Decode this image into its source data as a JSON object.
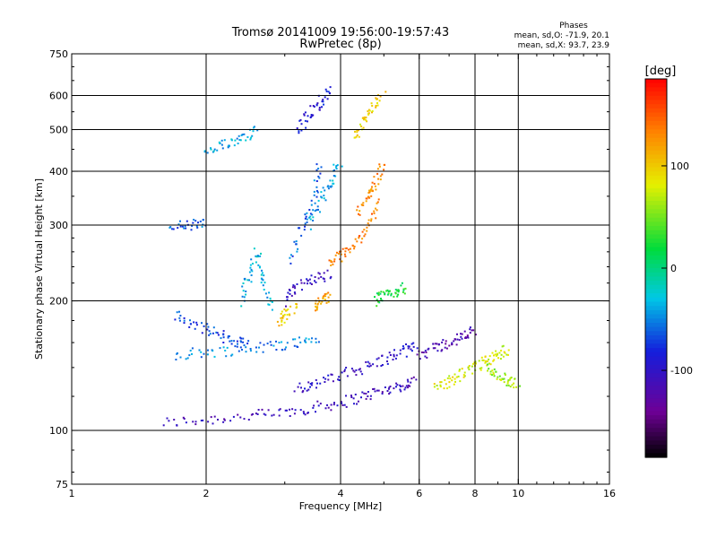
{
  "title_line1": "Tromsø 20141009 19:56:00-19:57:43",
  "title_line2": "RwPretec (8p)",
  "stats": {
    "heading": "Phases",
    "line_o": "mean, sd,O: -71.9, 20.1",
    "line_x": "mean, sd,X:  93.7, 23.9"
  },
  "colorbar": {
    "label": "[deg]",
    "ticks": [
      "100",
      "0",
      "-100"
    ],
    "tick_values": [
      100,
      0,
      -100
    ],
    "range": [
      -185,
      185
    ]
  },
  "chart_data": {
    "type": "scatter",
    "xlabel": "Frequency [MHz]",
    "ylabel": "Stationary phase Virtual Height [km]",
    "xscale": "log2",
    "yscale": "log",
    "xlim": [
      1,
      16
    ],
    "ylim": [
      75,
      750
    ],
    "xticks": [
      1,
      2,
      4,
      6,
      8,
      10,
      16
    ],
    "yticks": [
      75,
      100,
      200,
      300,
      400,
      500,
      600,
      750
    ],
    "grid": true,
    "color_scale": "rainbow (black → purple → blue → cyan → green → yellow → orange → red)",
    "color_value": "phase [deg]",
    "trace_note": "approximate centerlines of the scattered echo traces; phase in degrees",
    "traces": [
      {
        "x": [
          1.6,
          2.0,
          2.5,
          3.0,
          3.5,
          4.0,
          4.5,
          5.0,
          5.5,
          5.9
        ],
        "y": [
          104,
          106,
          108,
          110,
          113,
          116,
          120,
          124,
          127,
          130
        ],
        "phase": -110
      },
      {
        "x": [
          3.2,
          3.5,
          4.0,
          4.5,
          5.0,
          5.5,
          5.9
        ],
        "y": [
          126,
          128,
          134,
          140,
          146,
          152,
          158
        ],
        "phase": -100
      },
      {
        "x": [
          1.7,
          2.0,
          2.4,
          2.8,
          3.2,
          3.6
        ],
        "y": [
          150,
          152,
          154,
          157,
          160,
          164
        ],
        "phase": -50
      },
      {
        "x": [
          1.7,
          1.9,
          2.1,
          2.3,
          2.5
        ],
        "y": [
          185,
          175,
          168,
          162,
          158
        ],
        "phase": -70
      },
      {
        "x": [
          1.65,
          1.85,
          2.0
        ],
        "y": [
          298,
          300,
          302
        ],
        "phase": -60
      },
      {
        "x": [
          2.0,
          2.2,
          2.4,
          2.6
        ],
        "y": [
          440,
          460,
          480,
          500
        ],
        "phase": -40
      },
      {
        "x": [
          2.4,
          2.5,
          2.6,
          2.7,
          2.8
        ],
        "y": [
          200,
          230,
          260,
          220,
          190
        ],
        "phase": -35
      },
      {
        "x": [
          3.0,
          3.2,
          3.5,
          3.8
        ],
        "y": [
          200,
          215,
          225,
          230
        ],
        "phase": -105
      },
      {
        "x": [
          3.1,
          3.3,
          3.5,
          3.6
        ],
        "y": [
          250,
          300,
          350,
          420
        ],
        "phase": -60
      },
      {
        "x": [
          3.4,
          3.6,
          3.8,
          4.0
        ],
        "y": [
          300,
          340,
          380,
          420
        ],
        "phase": -40
      },
      {
        "x": [
          3.8,
          4.0,
          4.3,
          4.6,
          4.9
        ],
        "y": [
          245,
          255,
          270,
          300,
          340
        ],
        "phase": 135
      },
      {
        "x": [
          4.4,
          4.6,
          4.8,
          5.0
        ],
        "y": [
          320,
          350,
          380,
          410
        ],
        "phase": 130
      },
      {
        "x": [
          4.3,
          4.5,
          4.7,
          5.0
        ],
        "y": [
          480,
          520,
          560,
          600
        ],
        "phase": 95
      },
      {
        "x": [
          3.2,
          3.4,
          3.6,
          3.8
        ],
        "y": [
          500,
          540,
          580,
          620
        ],
        "phase": -90
      },
      {
        "x": [
          4.8,
          5.0,
          5.3,
          5.6
        ],
        "y": [
          200,
          205,
          210,
          215
        ],
        "phase": 20
      },
      {
        "x": [
          2.9,
          3.0,
          3.2
        ],
        "y": [
          175,
          185,
          195
        ],
        "phase": 100
      },
      {
        "x": [
          3.5,
          3.6,
          3.8
        ],
        "y": [
          190,
          200,
          205
        ],
        "phase": 120
      },
      {
        "x": [
          6.5,
          7.0,
          7.5,
          8.0,
          8.5,
          9.0,
          9.5
        ],
        "y": [
          125,
          130,
          135,
          140,
          145,
          150,
          155
        ],
        "phase": 80
      },
      {
        "x": [
          6.0,
          6.5,
          7.0,
          7.5,
          8.0
        ],
        "y": [
          150,
          155,
          160,
          165,
          170
        ],
        "phase": -120
      },
      {
        "x": [
          8.5,
          9.0,
          9.5,
          10.0
        ],
        "y": [
          140,
          135,
          130,
          128
        ],
        "phase": 60
      }
    ]
  }
}
